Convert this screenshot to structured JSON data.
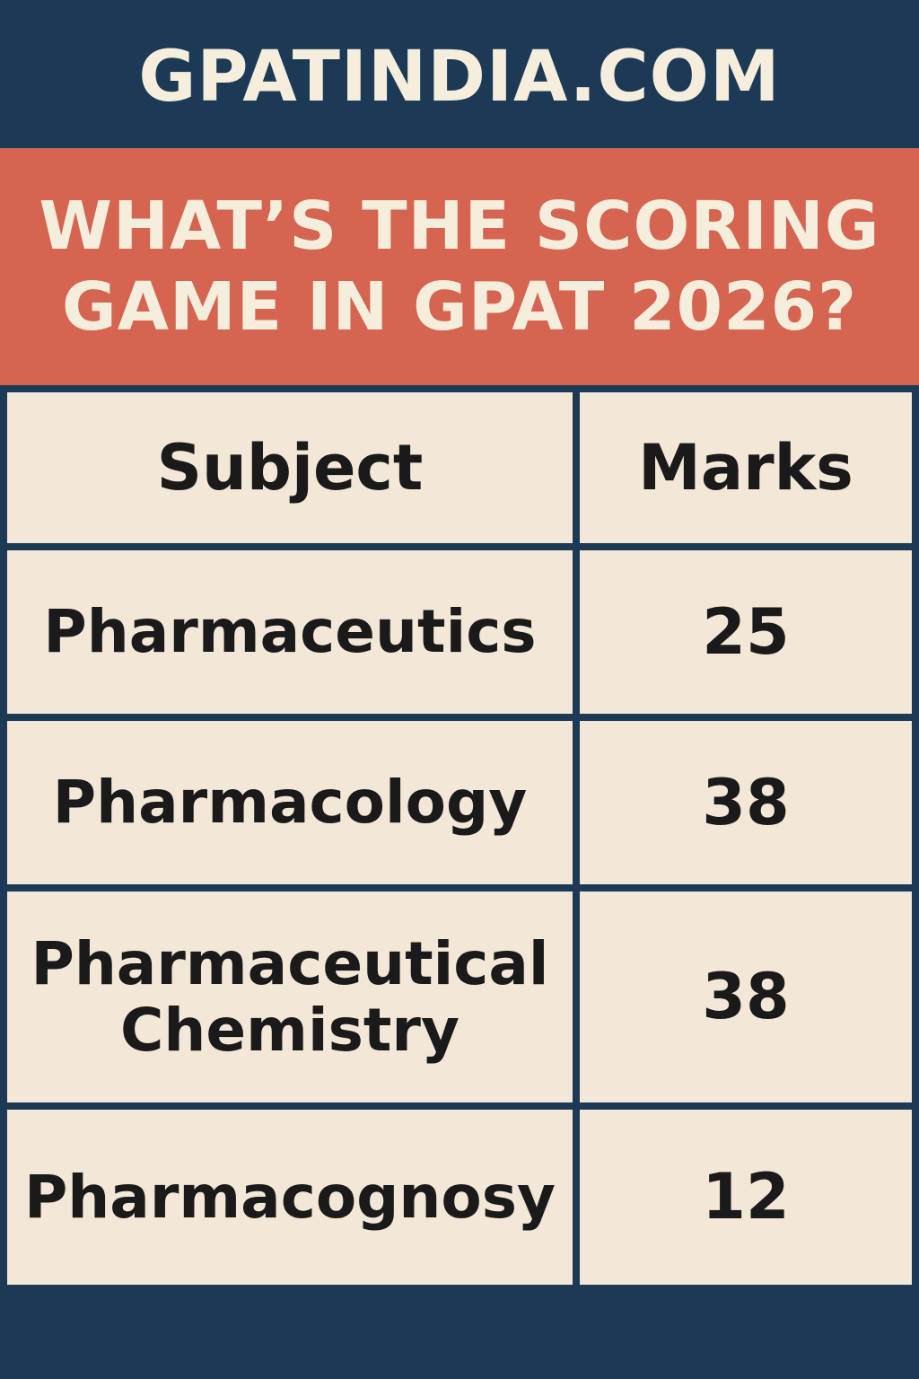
{
  "header": {
    "site_name": "GPATINDIA.COM"
  },
  "headline": {
    "line1": "WHAT’S THE SCORING",
    "line2": "GAME IN GPAT 2026?"
  },
  "table": {
    "columns": [
      "Subject",
      "Marks"
    ],
    "rows": [
      {
        "subject": "Pharmaceutics",
        "marks": "25"
      },
      {
        "subject": "Pharmacology",
        "marks": "38"
      },
      {
        "subject_line1": "Pharmaceutical",
        "subject_line2": "Chemistry",
        "marks": "38"
      },
      {
        "subject": "Pharmacognosy",
        "marks": "12"
      }
    ]
  },
  "colors": {
    "navy": "#1c3a56",
    "coral": "#d56450",
    "cream": "#f3e7d8",
    "text_light": "#f6eedd",
    "text_dark": "#1a1a1a"
  }
}
